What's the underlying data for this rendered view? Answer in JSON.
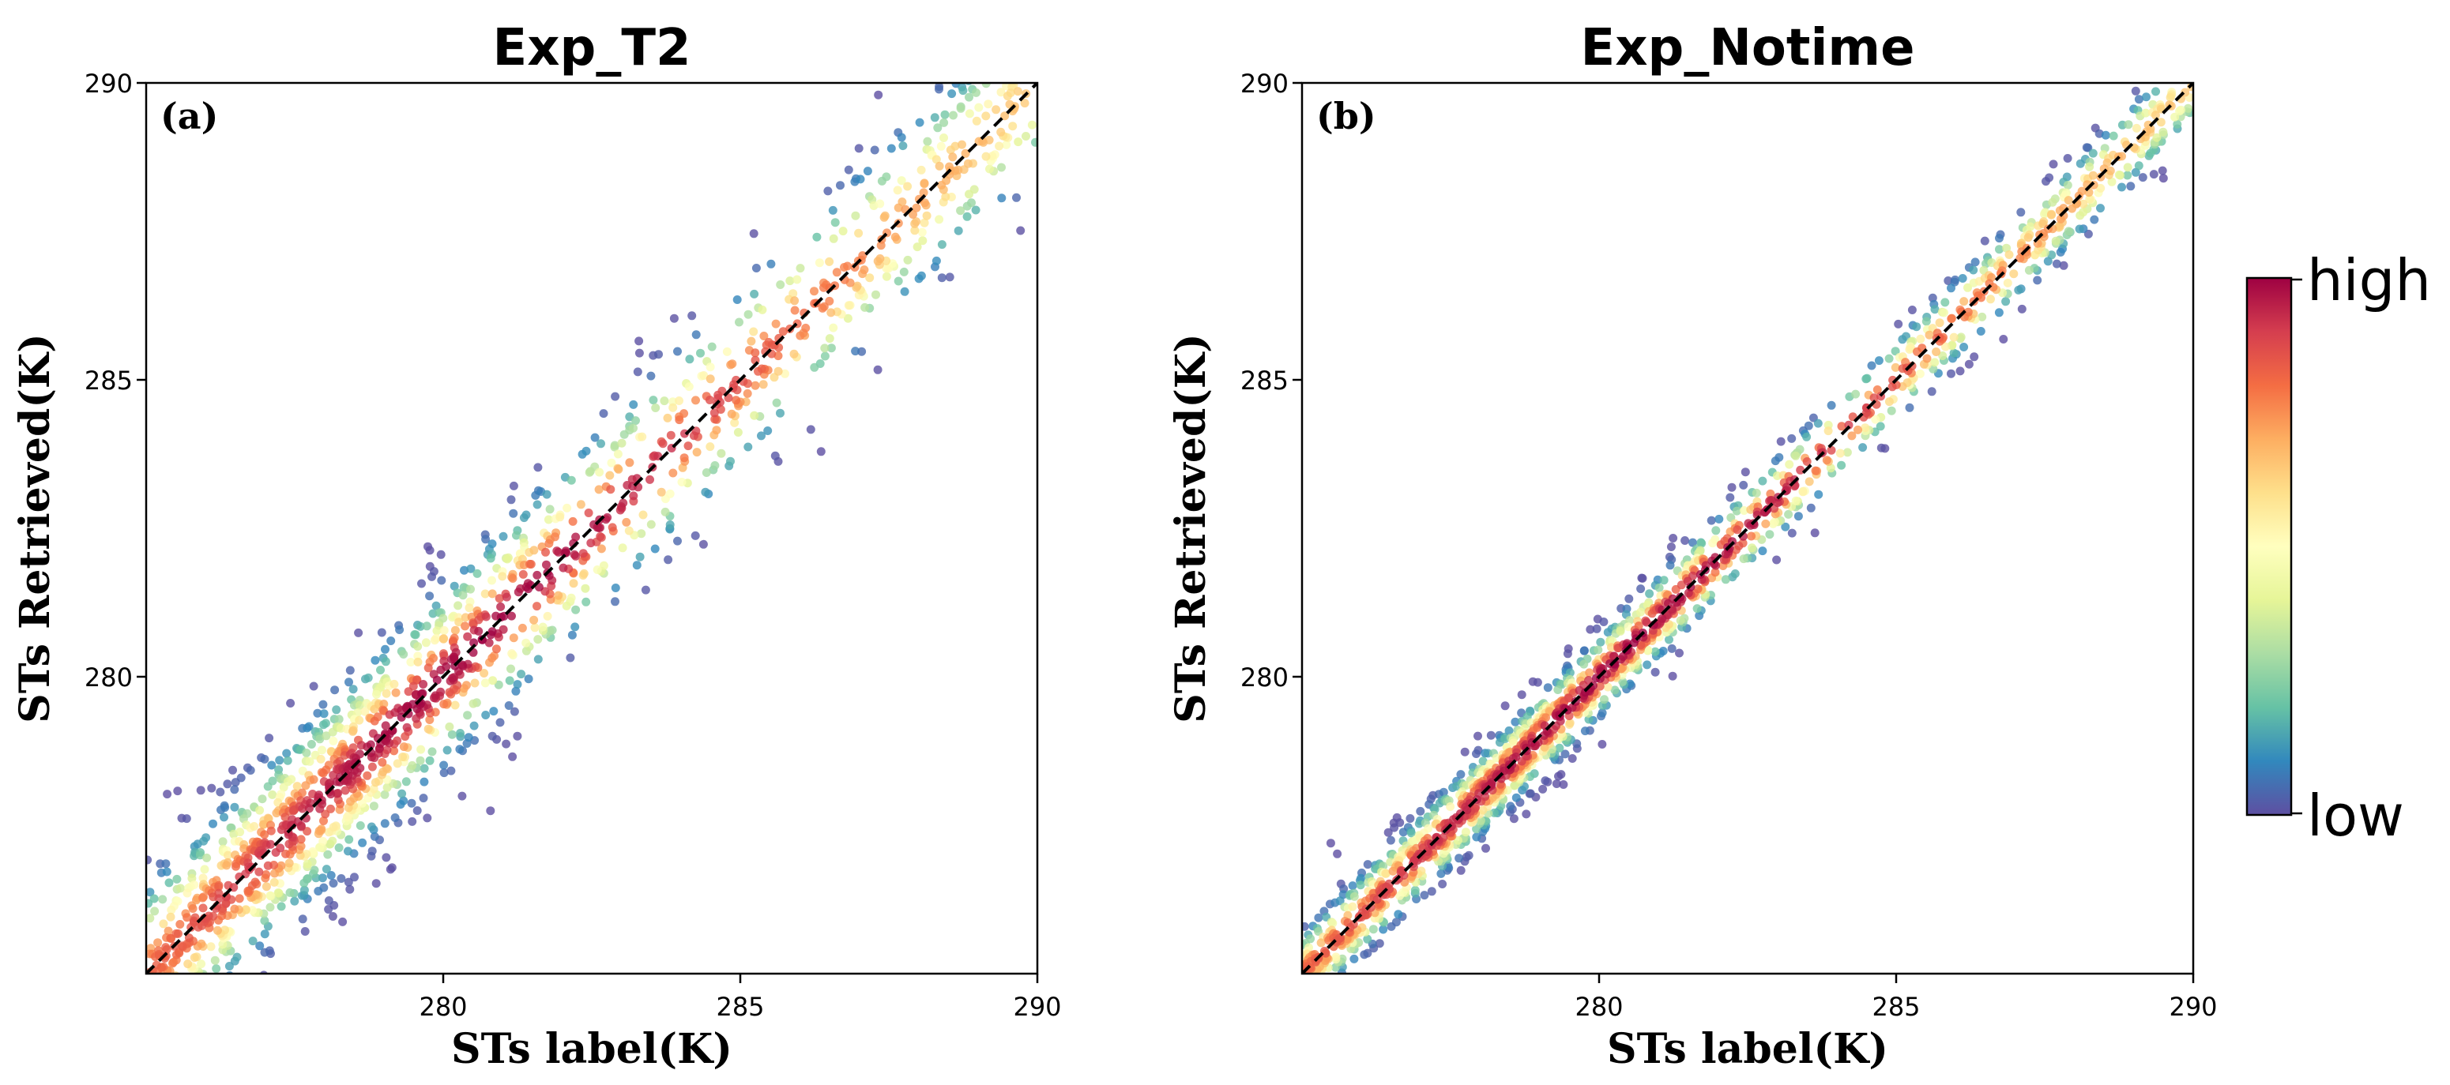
{
  "chart_data": [
    {
      "type": "scatter",
      "title": "Exp_T2",
      "panel_label": "(a)",
      "xlabel": "STs label(K)",
      "ylabel": "STs Retrieved(K)",
      "xlim": [
        275,
        290
      ],
      "ylim": [
        275,
        290
      ],
      "xticks": [
        "280",
        "285",
        "290"
      ],
      "yticks": [
        "280",
        "285",
        "290"
      ],
      "reference_line": "y = x (dashed)",
      "spread_K": 0.9,
      "colors": {
        "low": "#5e4fa2",
        "high": "#9e0142"
      }
    },
    {
      "type": "scatter",
      "title": "Exp_Notime",
      "panel_label": "(b)",
      "xlabel": "STs label(K)",
      "ylabel": "STs Retrieved(K)",
      "xlim": [
        275,
        290
      ],
      "ylim": [
        275,
        290
      ],
      "xticks": [
        "280",
        "285",
        "290"
      ],
      "yticks": [
        "280",
        "285",
        "290"
      ],
      "reference_line": "y = x (dashed)",
      "spread_K": 0.4,
      "colors": {
        "low": "#5e4fa2",
        "high": "#9e0142"
      }
    }
  ],
  "colorbar": {
    "high_label": "high",
    "low_label": "low",
    "colormap": "Spectral_r",
    "stops": [
      "#5e4fa2",
      "#3288bd",
      "#66c2a5",
      "#abdda4",
      "#e6f598",
      "#ffffbf",
      "#fee08b",
      "#fdae61",
      "#f46d43",
      "#d53e4f",
      "#9e0142"
    ]
  }
}
